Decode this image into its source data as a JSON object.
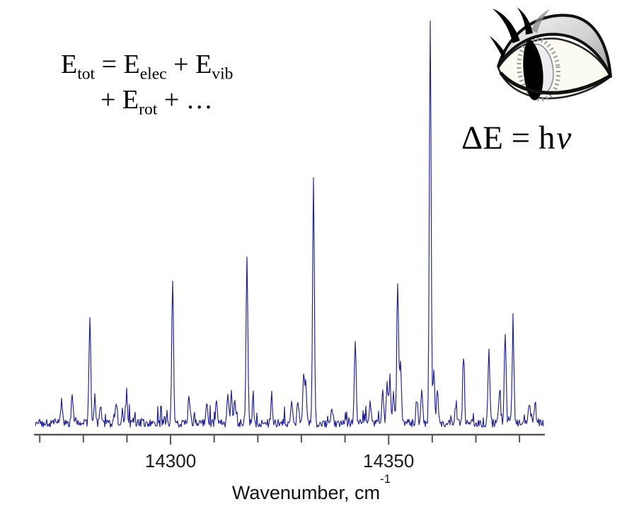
{
  "page": {
    "background": "#ffffff"
  },
  "equations": {
    "total_energy": {
      "t1": "E",
      "s1": "tot",
      "t2": " = E",
      "s2": "elec",
      "t3": " + E",
      "s3": "vib",
      "t4": "+ E",
      "s4": "rot",
      "t5": " +  …"
    },
    "planck": {
      "t1": "ΔE = h",
      "nu": "ν"
    }
  },
  "icons": {
    "eye": "stylized-eye-clipart"
  },
  "chart_data": {
    "type": "line",
    "title": "",
    "description": "High-resolution optical spectrum of sharp peaks over a noisy baseline",
    "xlabel": "Wavenumber, cm",
    "xlabel_superscript": "-1",
    "ylabel": "",
    "x_range": [
      14269,
      14385.5
    ],
    "y_range": [
      0,
      1.0
    ],
    "x_minor_ticks": [
      14270,
      14280,
      14290,
      14300,
      14310,
      14320,
      14330,
      14340,
      14350,
      14360,
      14370,
      14380
    ],
    "x_major_ticks": [
      14300,
      14350
    ],
    "grid": false,
    "legend": false,
    "line_color": "#1f1f9c",
    "axis_color": "#555555",
    "tick_label_color": "#1a1a1a",
    "peaks": [
      {
        "x": 14275.0,
        "i": 0.058
      },
      {
        "x": 14277.5,
        "i": 0.075
      },
      {
        "x": 14281.5,
        "i": 0.25
      },
      {
        "x": 14282.7,
        "i": 0.06
      },
      {
        "x": 14284.0,
        "i": 0.045
      },
      {
        "x": 14287.5,
        "i": 0.05
      },
      {
        "x": 14290.0,
        "i": 0.055
      },
      {
        "x": 14300.5,
        "i": 0.35
      },
      {
        "x": 14304.2,
        "i": 0.066
      },
      {
        "x": 14308.2,
        "i": 0.05
      },
      {
        "x": 14310.6,
        "i": 0.055
      },
      {
        "x": 14313.1,
        "i": 0.07
      },
      {
        "x": 14313.9,
        "i": 0.075
      },
      {
        "x": 14314.8,
        "i": 0.06
      },
      {
        "x": 14317.5,
        "i": 0.41
      },
      {
        "x": 14318.9,
        "i": 0.042
      },
      {
        "x": 14323.2,
        "i": 0.055
      },
      {
        "x": 14327.7,
        "i": 0.052
      },
      {
        "x": 14329.2,
        "i": 0.06
      },
      {
        "x": 14330.5,
        "i": 0.108
      },
      {
        "x": 14331.0,
        "i": 0.095
      },
      {
        "x": 14332.7,
        "i": 0.59
      },
      {
        "x": 14337.0,
        "i": 0.04
      },
      {
        "x": 14342.3,
        "i": 0.21
      },
      {
        "x": 14345.8,
        "i": 0.054
      },
      {
        "x": 14348.7,
        "i": 0.08
      },
      {
        "x": 14349.7,
        "i": 0.1
      },
      {
        "x": 14350.3,
        "i": 0.115
      },
      {
        "x": 14351.1,
        "i": 0.08
      },
      {
        "x": 14352.0,
        "i": 0.35
      },
      {
        "x": 14352.8,
        "i": 0.148
      },
      {
        "x": 14356.4,
        "i": 0.06
      },
      {
        "x": 14357.6,
        "i": 0.08
      },
      {
        "x": 14359.5,
        "i": 1.0
      },
      {
        "x": 14360.3,
        "i": 0.13
      },
      {
        "x": 14361.1,
        "i": 0.085
      },
      {
        "x": 14365.3,
        "i": 0.04
      },
      {
        "x": 14367.1,
        "i": 0.148
      },
      {
        "x": 14373.0,
        "i": 0.175
      },
      {
        "x": 14375.4,
        "i": 0.078
      },
      {
        "x": 14376.7,
        "i": 0.227
      },
      {
        "x": 14378.6,
        "i": 0.234
      },
      {
        "x": 14382.3,
        "i": 0.05
      },
      {
        "x": 14383.6,
        "i": 0.042
      }
    ],
    "noise": {
      "seed": 1337,
      "base_min": 0.006,
      "base_span": 0.02,
      "spike_prob": 0.1,
      "spike_max": 0.038,
      "rare_spike_prob": 0.02,
      "rare_spike_max": 0.03
    }
  }
}
